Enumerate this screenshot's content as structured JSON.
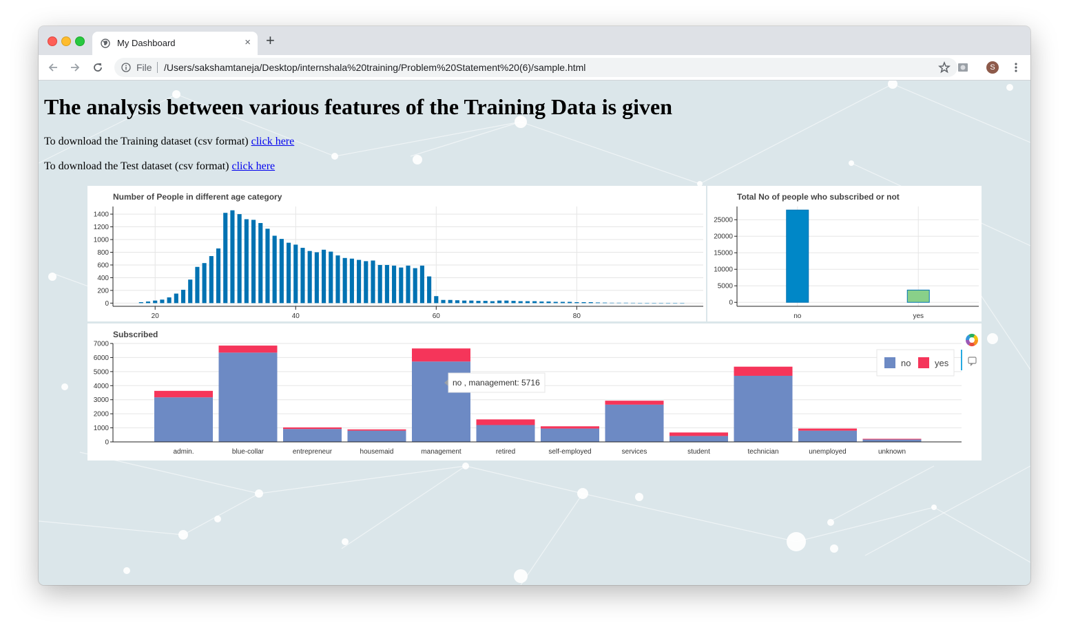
{
  "browser": {
    "tab_title": "My Dashboard",
    "close_glyph": "×",
    "new_tab_glyph": "+",
    "file_label": "File",
    "url": "/Users/sakshamtaneja/Desktop/internshala%20training/Problem%20Statement%20(6)/sample.html",
    "avatar_letter": "S"
  },
  "page": {
    "heading": "The analysis between various features of the Training Data is given",
    "train_text": "To download the Training dataset (csv format) ",
    "test_text": "To download the Test dataset (csv format) ",
    "link_label": "click here "
  },
  "colors": {
    "bar_blue": "#0072b2",
    "subscribed_no_bar": "#0087c7",
    "subscribed_yes_bar": "#89d089",
    "no": "#6d8ac4",
    "yes": "#f5355a"
  },
  "chart_data": [
    {
      "type": "bar",
      "title": "Number of People in different age category",
      "x": [
        18,
        19,
        20,
        21,
        22,
        23,
        24,
        25,
        26,
        27,
        28,
        29,
        30,
        31,
        32,
        33,
        34,
        35,
        36,
        37,
        38,
        39,
        40,
        41,
        42,
        43,
        44,
        45,
        46,
        47,
        48,
        49,
        50,
        51,
        52,
        53,
        54,
        55,
        56,
        57,
        58,
        59,
        60,
        61,
        62,
        63,
        64,
        65,
        66,
        67,
        68,
        69,
        70,
        71,
        72,
        73,
        74,
        75,
        76,
        77,
        78,
        79,
        80,
        81,
        82,
        83,
        84,
        85,
        86,
        87,
        88,
        89,
        90,
        91,
        92,
        93,
        94,
        95
      ],
      "values": [
        15,
        25,
        40,
        55,
        90,
        150,
        210,
        370,
        570,
        630,
        740,
        860,
        1420,
        1460,
        1400,
        1320,
        1310,
        1260,
        1170,
        1060,
        1010,
        950,
        920,
        870,
        820,
        800,
        840,
        810,
        750,
        710,
        700,
        680,
        660,
        670,
        600,
        600,
        590,
        560,
        590,
        550,
        590,
        420,
        110,
        50,
        50,
        45,
        40,
        40,
        35,
        35,
        30,
        40,
        40,
        35,
        30,
        30,
        30,
        25,
        25,
        20,
        20,
        20,
        15,
        15,
        15,
        10,
        8,
        6,
        6,
        6,
        5,
        4,
        3,
        3,
        2,
        2,
        2,
        2
      ],
      "xticks": [
        20,
        40,
        60,
        80
      ],
      "yticks": [
        0,
        200,
        400,
        600,
        800,
        1000,
        1200,
        1400
      ],
      "xlim": [
        14,
        98
      ],
      "ylim": [
        -50,
        1520
      ]
    },
    {
      "type": "bar",
      "title": "Total No of people who subscribed or not",
      "categories": [
        "no",
        "yes"
      ],
      "values": [
        27930,
        3717
      ],
      "yticks": [
        0,
        5000,
        10000,
        15000,
        20000,
        25000
      ],
      "ylim": [
        -1200,
        29000
      ]
    },
    {
      "type": "bar",
      "title": "Subscribed",
      "stacked": true,
      "categories": [
        "admin.",
        "blue-collar",
        "entrepreneur",
        "housemaid",
        "management",
        "retired",
        "self-employed",
        "services",
        "student",
        "technician",
        "unemployed",
        "unknown"
      ],
      "series": [
        {
          "name": "no",
          "values": [
            3170,
            6350,
            920,
            800,
            5716,
            1200,
            950,
            2650,
            420,
            4700,
            800,
            170
          ]
        },
        {
          "name": "yes",
          "values": [
            460,
            500,
            110,
            90,
            930,
            400,
            160,
            280,
            250,
            650,
            150,
            50
          ]
        }
      ],
      "yticks": [
        0,
        1000,
        2000,
        3000,
        4000,
        5000,
        6000,
        7000
      ],
      "ylim": [
        0,
        7000
      ],
      "legend": "top-right",
      "tooltip": "no , management: 5716"
    }
  ]
}
